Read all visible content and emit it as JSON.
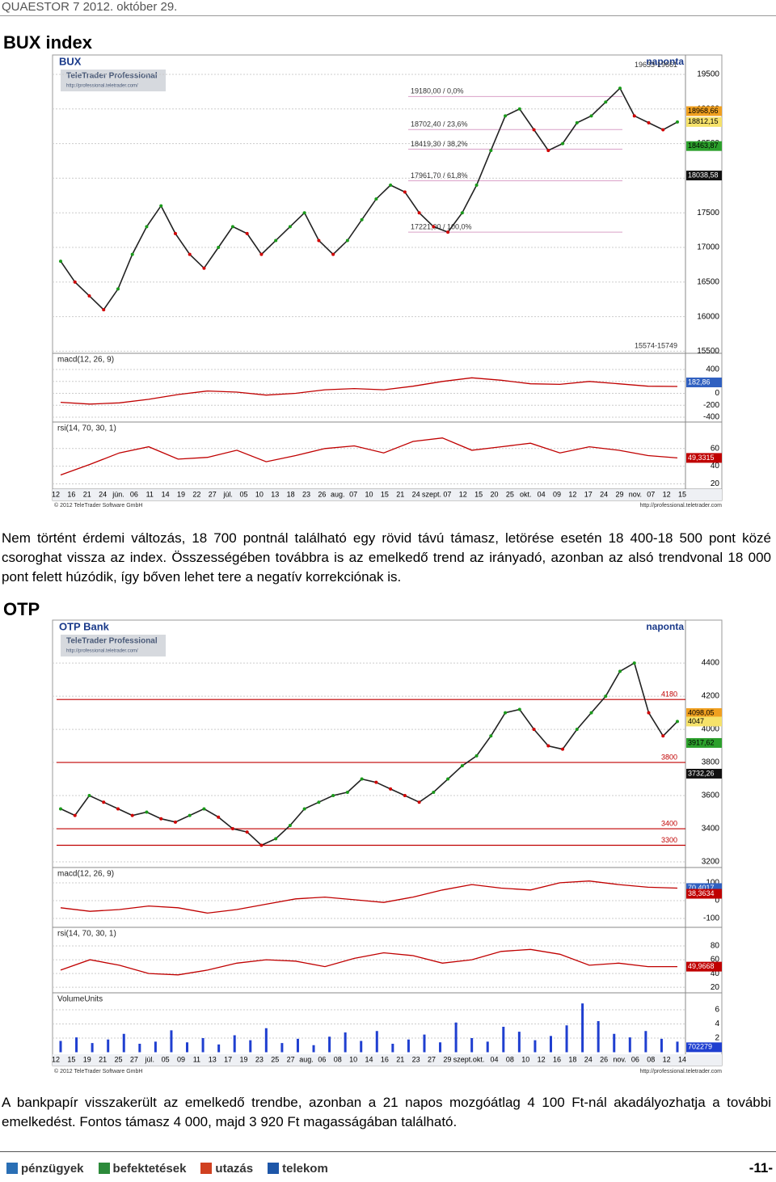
{
  "header": {
    "title": "QUAESTOR 7  2012. október 29."
  },
  "sections": [
    {
      "heading": "BUX index",
      "text": "Nem történt érdemi változás, 18 700 pontnál található egy rövid távú támasz, letörése esetén 18 400-18 500 pont közé csoroghat vissza az index. Összességében továbbra is az emelkedő trend az irányadó, azonban az alsó trendvonal 18 000 pont felett húzódik, így bőven lehet tere a negatív korrekciónak is.",
      "chart": {
        "title": "BUX",
        "period": "naponta",
        "logo": "TeleTrader Professional",
        "logo_url": "http://professional.teletrader.com/",
        "x_labels": [
          "12",
          "16",
          "21",
          "24",
          "jún.",
          "06",
          "11",
          "14",
          "19",
          "22",
          "27",
          "júl.",
          "05",
          "10",
          "13",
          "18",
          "23",
          "26",
          "aug.",
          "07",
          "10",
          "15",
          "21",
          "24",
          "szept.",
          "07",
          "12",
          "15",
          "20",
          "25",
          "okt.",
          "04",
          "09",
          "12",
          "17",
          "24",
          "29",
          "nov.",
          "07",
          "12",
          "15"
        ],
        "copyright": "© 2012 TeleTrader Software GmbH",
        "url": "http://professional.teletrader.com",
        "panels": [
          {
            "type": "price",
            "ylim": [
              15470,
              19780
            ],
            "yticks": [
              15500,
              16000,
              16500,
              17000,
              17500,
              18000,
              18500,
              19000,
              19500
            ],
            "series": [
              {
                "color": "#222222",
                "values": [
                  16800,
                  16500,
                  16300,
                  16100,
                  16400,
                  16900,
                  17300,
                  17600,
                  17200,
                  16900,
                  16700,
                  17000,
                  17300,
                  17200,
                  16900,
                  17100,
                  17300,
                  17500,
                  17100,
                  16900,
                  17100,
                  17400,
                  17700,
                  17900,
                  17800,
                  17500,
                  17300,
                  17221,
                  17500,
                  17900,
                  18400,
                  18900,
                  19000,
                  18700,
                  18400,
                  18500,
                  18800,
                  18900,
                  19100,
                  19300,
                  18900,
                  18800,
                  18700,
                  18812
                ]
              }
            ],
            "value_labels": [
              {
                "value": 18968.66,
                "label": "18968,66",
                "color": "#f0a020"
              },
              {
                "value": 18812.15,
                "label": "18812,15",
                "color": "#f6e26a"
              },
              {
                "value": 18463.87,
                "label": "18463,87",
                "color": "#2ca02c"
              },
              {
                "value": 18038.58,
                "label": "18038,58",
                "color": "#111111"
              }
            ],
            "fibonacci": [
              {
                "value": 19180,
                "label": "19180,00 / 0,0%"
              },
              {
                "value": 18702.4,
                "label": "18702,40 / 23,6%"
              },
              {
                "value": 18419.3,
                "label": "18419,30 / 38,2%"
              },
              {
                "value": 17961.7,
                "label": "17961,70 / 61,8%"
              },
              {
                "value": 17221,
                "label": "17221,00 / 100,0%"
              }
            ],
            "ranges": [
              {
                "value": 19633,
                "label": "19633-19661"
              },
              {
                "value": 15574,
                "label": "15574-15749"
              }
            ]
          },
          {
            "type": "line",
            "label": "macd(12, 26, 9)",
            "ylim": [
              -481,
              671
            ],
            "yticks": [
              -400,
              -200,
              0,
              200,
              400
            ],
            "series": [
              {
                "color": "#c00000",
                "values": [
                  -150,
                  -180,
                  -160,
                  -100,
                  -20,
                  40,
                  20,
                  -30,
                  0,
                  60,
                  80,
                  60,
                  120,
                  200,
                  260,
                  220,
                  160,
                  150,
                  200,
                  160,
                  120,
                  115
                ]
              }
            ],
            "value_labels": [
              {
                "value": 182.86,
                "label": "182,86",
                "color": "#3060c0"
              }
            ]
          },
          {
            "type": "line",
            "label": "rsi(14, 70, 30, 1)",
            "ylim": [
              14,
              90
            ],
            "yticks": [
              20,
              40,
              60
            ],
            "series": [
              {
                "color": "#c00000",
                "values": [
                  30,
                  42,
                  55,
                  62,
                  48,
                  50,
                  58,
                  45,
                  52,
                  60,
                  63,
                  55,
                  68,
                  72,
                  58,
                  62,
                  66,
                  55,
                  62,
                  58,
                  52,
                  49.33
                ]
              }
            ],
            "value_labels": [
              {
                "value": 49.3315,
                "label": "49,3315",
                "color": "#c00000"
              }
            ]
          }
        ]
      }
    },
    {
      "heading": "OTP",
      "text": "A bankpapír visszakerült az emelkedő trendbe, azonban a 21 napos mozgóátlag 4 100 Ft-nál akadályozhatja a további emelkedést. Fontos támasz 4 000, majd 3 920 Ft magasságában található.",
      "chart": {
        "title": "OTP Bank",
        "period": "naponta",
        "logo": "TeleTrader Professional",
        "logo_url": "http://professional.teletrader.com/",
        "x_labels": [
          "12",
          "15",
          "19",
          "21",
          "25",
          "27",
          "júl.",
          "05",
          "09",
          "11",
          "13",
          "17",
          "19",
          "23",
          "25",
          "27",
          "aug.",
          "06",
          "08",
          "10",
          "14",
          "16",
          "21",
          "23",
          "27",
          "29",
          "szept.",
          "okt.",
          "04",
          "08",
          "10",
          "12",
          "16",
          "18",
          "24",
          "26",
          "nov.",
          "06",
          "08",
          "12",
          "14"
        ],
        "copyright": "© 2012 TeleTrader Software GmbH",
        "url": "http://professional.teletrader.com",
        "panels": [
          {
            "type": "price",
            "ylim": [
              3166,
              4659
            ],
            "yticks": [
              3200,
              3400,
              3600,
              3800,
              4000,
              4200,
              4400
            ],
            "series": [
              {
                "color": "#222222",
                "values": [
                  3520,
                  3480,
                  3600,
                  3560,
                  3520,
                  3480,
                  3500,
                  3460,
                  3440,
                  3480,
                  3520,
                  3470,
                  3400,
                  3380,
                  3300,
                  3340,
                  3420,
                  3520,
                  3560,
                  3600,
                  3620,
                  3700,
                  3680,
                  3640,
                  3600,
                  3560,
                  3620,
                  3700,
                  3780,
                  3840,
                  3960,
                  4100,
                  4120,
                  4000,
                  3900,
                  3880,
                  4000,
                  4100,
                  4200,
                  4350,
                  4400,
                  4100,
                  3960,
                  4047
                ]
              }
            ],
            "value_labels": [
              {
                "value": 4098.05,
                "label": "4098,05",
                "color": "#f0a020"
              },
              {
                "value": 4047,
                "label": "4047",
                "color": "#f6e26a"
              },
              {
                "value": 3917.62,
                "label": "3917,62",
                "color": "#2ca02c"
              },
              {
                "value": 3732.26,
                "label": "3732,26",
                "color": "#111111"
              }
            ],
            "levels": [
              4180,
              3800,
              3400,
              3300
            ]
          },
          {
            "type": "line",
            "label": "macd(12, 26, 9)",
            "ylim": [
              -150,
              186
            ],
            "yticks": [
              -100,
              0,
              100
            ],
            "series": [
              {
                "color": "#c00000",
                "values": [
                  -40,
                  -60,
                  -50,
                  -30,
                  -40,
                  -70,
                  -50,
                  -20,
                  10,
                  20,
                  5,
                  -10,
                  20,
                  60,
                  90,
                  70,
                  60,
                  100,
                  110,
                  90,
                  75,
                  70
                ]
              }
            ],
            "value_labels": [
              {
                "value": 70.4017,
                "label": "70,4017",
                "color": "#3060c0"
              },
              {
                "value": 38.3634,
                "label": "38,3634",
                "color": "#c00000"
              }
            ]
          },
          {
            "type": "line",
            "label": "rsi(14, 70, 30, 1)",
            "ylim": [
              12,
              107
            ],
            "yticks": [
              20,
              40,
              60,
              80
            ],
            "series": [
              {
                "color": "#c00000",
                "values": [
                  45,
                  60,
                  52,
                  40,
                  38,
                  45,
                  55,
                  60,
                  58,
                  50,
                  62,
                  70,
                  66,
                  55,
                  60,
                  72,
                  75,
                  68,
                  52,
                  55,
                  50,
                  49.97
                ]
              }
            ],
            "value_labels": [
              {
                "value": 49.9668,
                "label": "49,9668",
                "color": "#c00000"
              }
            ]
          },
          {
            "type": "bar",
            "label": "VolumeUnits",
            "ylim": [
              -0.4,
              8.4
            ],
            "yticks": [
              2,
              4,
              6
            ],
            "series": [
              {
                "color": "#1f3fd0",
                "values": [
                  1.6,
                  2.1,
                  1.3,
                  1.8,
                  2.6,
                  1.2,
                  1.5,
                  3.1,
                  1.4,
                  2.0,
                  1.1,
                  2.4,
                  1.7,
                  3.4,
                  1.3,
                  1.9,
                  1.0,
                  2.2,
                  2.8,
                  1.6,
                  3.0,
                  1.2,
                  1.8,
                  2.5,
                  1.4,
                  4.2,
                  2.0,
                  1.5,
                  3.6,
                  2.9,
                  1.7,
                  2.3,
                  3.8,
                  6.9,
                  4.4,
                  2.6,
                  2.1,
                  3.0,
                  1.9,
                  1.5
                ]
              }
            ],
            "value_labels": [
              {
                "value": 0.702279,
                "label": "702279",
                "color": "#1f3fd0"
              }
            ]
          }
        ]
      }
    }
  ],
  "footer": {
    "nav": [
      "pénzügyek",
      "befektetések",
      "utazás",
      "telekom"
    ],
    "page": "-11-"
  }
}
